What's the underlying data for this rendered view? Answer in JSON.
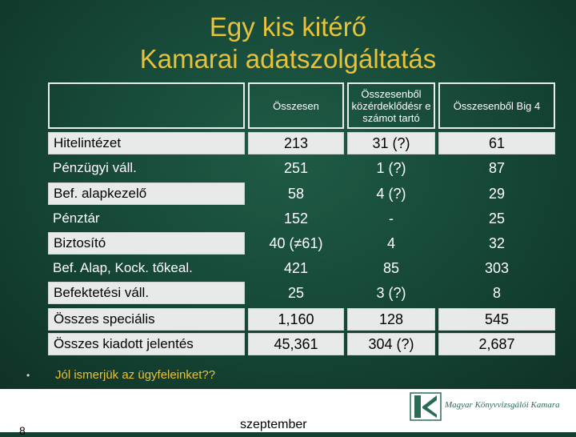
{
  "title": {
    "line1": "Egy kis kitérő",
    "line2": "Kamarai adatszolgáltatás"
  },
  "table": {
    "headers": [
      "",
      "Összesen",
      "Összesenből közérdeklődésr e számot tartó",
      "Összesenből Big 4"
    ],
    "rows": [
      {
        "label": "Hitelintézet",
        "cols": [
          "213",
          "31 (?)",
          "61"
        ]
      },
      {
        "label": "Pénzügyi váll.",
        "cols": [
          "251",
          "1 (?)",
          "87"
        ]
      },
      {
        "label": "Bef. alapkezelő",
        "cols": [
          "58",
          "4 (?)",
          "29"
        ]
      },
      {
        "label": "Pénztár",
        "cols": [
          "152",
          "-",
          "25"
        ]
      },
      {
        "label": "Biztosító",
        "cols": [
          "40 (≠61)",
          "4",
          "32"
        ]
      },
      {
        "label": "Bef. Alap, Kock. tőkeal.",
        "cols": [
          "421",
          "85",
          "303"
        ]
      },
      {
        "label": "Befektetési váll.",
        "cols": [
          "25",
          "3 (?)",
          "8"
        ]
      },
      {
        "label": "Összes speciális",
        "cols": [
          "1,160",
          "128",
          "545"
        ]
      },
      {
        "label": "Összes kiadott jelentés",
        "cols": [
          "45,361",
          "304 (?)",
          "2,687"
        ]
      }
    ]
  },
  "bullet": {
    "marker": "•",
    "text": "Jól ismerjük az ügyfeleinket??"
  },
  "footer": {
    "logo_text": "Magyar Könyvvizsgálói Kamara",
    "date": "szeptember",
    "page_number": "8"
  },
  "colors": {
    "background": "#174a39",
    "title": "#e8c23a",
    "cell_fill": "#e8eaea"
  }
}
